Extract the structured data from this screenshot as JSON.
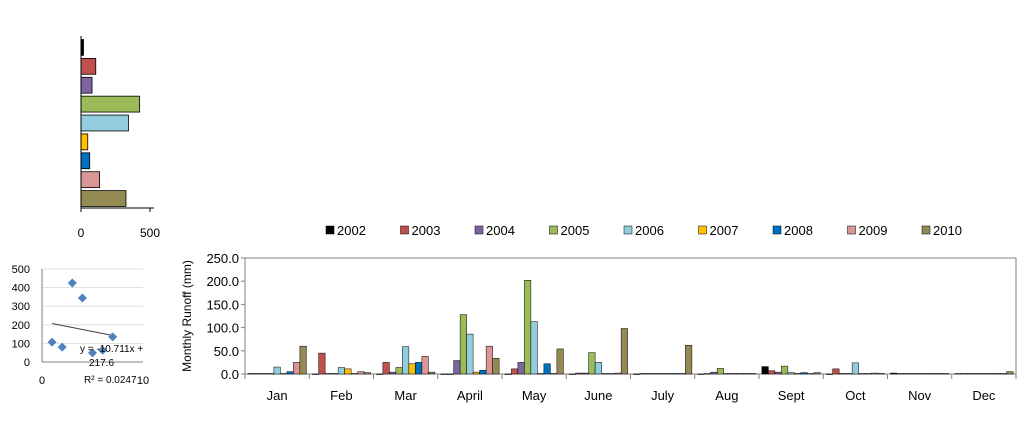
{
  "chart_data": [
    {
      "type": "bar",
      "orientation": "horizontal",
      "categories": [
        "2002",
        "2003",
        "2004",
        "2005",
        "2006",
        "2007",
        "2008",
        "2009",
        "2010"
      ],
      "values": [
        18,
        107,
        80,
        425,
        344,
        49,
        63,
        135,
        326
      ],
      "colors": [
        "#000000",
        "#c0504d",
        "#8064a2",
        "#9bbb59",
        "#93cddd",
        "#ffc000",
        "#0070c0",
        "#da9694",
        "#948a54"
      ],
      "xlim": [
        0,
        500
      ],
      "xticks": [
        "0",
        "500"
      ],
      "category_labels_shown": false,
      "grid": false
    },
    {
      "type": "scatter",
      "points": [
        {
          "x": 1,
          "y": 107
        },
        {
          "x": 2,
          "y": 80
        },
        {
          "x": 3,
          "y": 425
        },
        {
          "x": 4,
          "y": 344
        },
        {
          "x": 5,
          "y": 49
        },
        {
          "x": 6,
          "y": 63
        },
        {
          "x": 7,
          "y": 135
        }
      ],
      "marker_color": "#4f81bd",
      "xlim": [
        0,
        10
      ],
      "ylim": [
        0,
        500
      ],
      "xticks": [
        "0",
        "10"
      ],
      "yticks": [
        "0",
        "100",
        "200",
        "300",
        "400",
        "500"
      ],
      "trendline": {
        "slope": -10.711,
        "intercept": 217.6,
        "x_from": 1,
        "x_to": 7
      },
      "equation_lines": [
        "y = -10.711x +",
        "217.6"
      ],
      "r2_label": "R² = 0.0247",
      "grid": true
    },
    {
      "type": "bar",
      "categories": [
        "Jan",
        "Feb",
        "Mar",
        "April",
        "May",
        "June",
        "July",
        "Aug",
        "Sept",
        "Oct",
        "Nov",
        "Dec"
      ],
      "series": [
        {
          "name": "2002",
          "color": "#000000",
          "values": [
            1,
            0,
            0,
            0,
            0,
            0,
            0,
            0,
            16,
            0,
            2,
            1
          ]
        },
        {
          "name": "2003",
          "color": "#c0504d",
          "values": [
            1,
            45,
            25,
            0,
            11,
            2,
            1,
            1,
            7,
            11,
            1,
            1
          ]
        },
        {
          "name": "2004",
          "color": "#8064a2",
          "values": [
            1,
            1,
            4,
            29,
            25,
            2,
            1,
            4,
            4,
            1,
            1,
            1
          ]
        },
        {
          "name": "2005",
          "color": "#9bbb59",
          "values": [
            1,
            1,
            14,
            128,
            202,
            46,
            1,
            12,
            17,
            1,
            1,
            1
          ]
        },
        {
          "name": "2006",
          "color": "#93cddd",
          "values": [
            15,
            14,
            59,
            86,
            113,
            25,
            1,
            1,
            3,
            24,
            1,
            1
          ]
        },
        {
          "name": "2007",
          "color": "#ffc000",
          "values": [
            1,
            11,
            22,
            4,
            1,
            1,
            1,
            1,
            1,
            1,
            1,
            1
          ]
        },
        {
          "name": "2008",
          "color": "#0070c0",
          "values": [
            5,
            1,
            25,
            8,
            22,
            1,
            1,
            1,
            3,
            1,
            1,
            1
          ]
        },
        {
          "name": "2009",
          "color": "#da9694",
          "values": [
            25,
            5,
            38,
            60,
            1,
            2,
            1,
            1,
            1,
            2,
            1,
            1
          ]
        },
        {
          "name": "2010",
          "color": "#948a54",
          "values": [
            60,
            3,
            4,
            34,
            54,
            98,
            62,
            1,
            3,
            1,
            1,
            5
          ]
        }
      ],
      "ylabel": "Monthly  Runoff (mm)",
      "ylim": [
        0,
        250
      ],
      "yticks": [
        "0.0",
        "50.0",
        "100.0",
        "150.0",
        "200.0",
        "250.0"
      ],
      "legend_position": "top",
      "grid": false
    }
  ]
}
